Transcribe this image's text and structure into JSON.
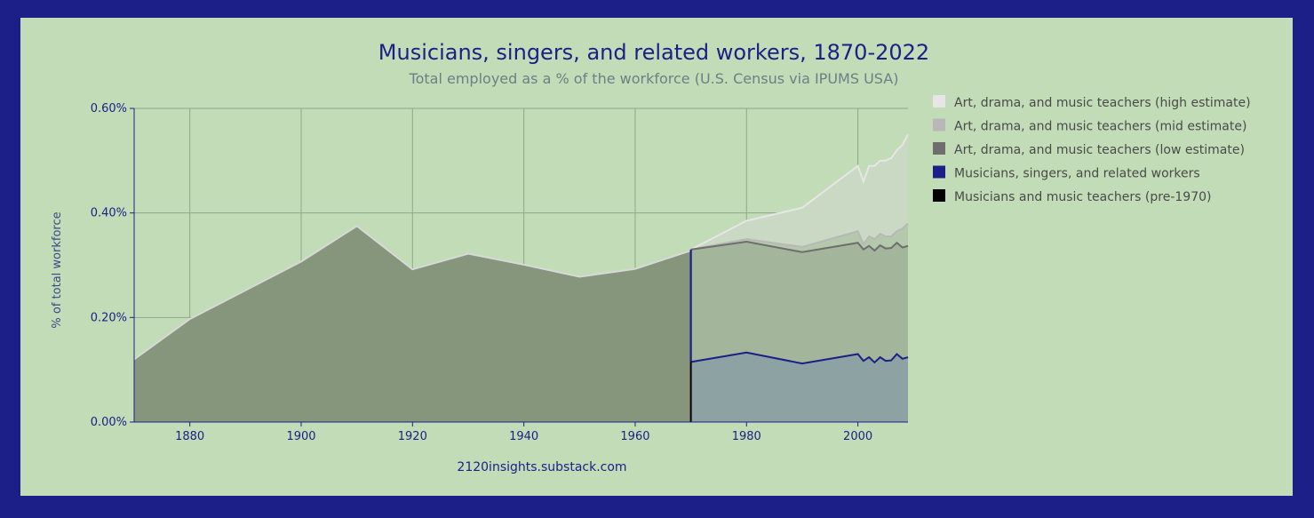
{
  "chart_data": {
    "type": "area",
    "title": "Musicians, singers, and related workers, 1870-2022",
    "subtitle": "Total employed as a % of the workforce (U.S. Census via IPUMS USA)",
    "ylabel": "% of total workforce",
    "xlabel": "",
    "credit": "2120insights.substack.com",
    "xlim": [
      1870,
      2009
    ],
    "ylim": [
      0,
      0.6
    ],
    "x_ticks": [
      1880,
      1900,
      1920,
      1940,
      1960,
      1980,
      2000
    ],
    "y_ticks": [
      0,
      0.2,
      0.4,
      0.6
    ],
    "y_tick_labels": [
      "0.00%",
      "0.20%",
      "0.40%",
      "0.60%"
    ],
    "grid": true,
    "legend_position": "right",
    "series": [
      {
        "name": "Art, drama, and music teachers (high estimate)",
        "color": "#e6e6e6",
        "x": [
          1970,
          1980,
          1990,
          2000,
          2001,
          2002,
          2003,
          2004,
          2005,
          2006,
          2007,
          2008,
          2009
        ],
        "values": [
          0.33,
          0.385,
          0.41,
          0.49,
          0.46,
          0.49,
          0.49,
          0.5,
          0.5,
          0.505,
          0.52,
          0.53,
          0.55
        ]
      },
      {
        "name": "Art, drama, and music teachers (mid estimate)",
        "color": "#b8b8b8",
        "x": [
          1970,
          1980,
          1990,
          2000,
          2001,
          2002,
          2003,
          2004,
          2005,
          2006,
          2007,
          2008,
          2009
        ],
        "values": [
          0.33,
          0.35,
          0.335,
          0.365,
          0.34,
          0.355,
          0.35,
          0.36,
          0.355,
          0.355,
          0.365,
          0.37,
          0.38
        ]
      },
      {
        "name": "Art, drama, and music teachers (low estimate)",
        "color": "#6e6e6e",
        "x": [
          1970,
          1980,
          1990,
          2000,
          2001,
          2002,
          2003,
          2004,
          2005,
          2006,
          2007,
          2008,
          2009
        ],
        "values": [
          0.33,
          0.345,
          0.325,
          0.343,
          0.33,
          0.337,
          0.328,
          0.338,
          0.332,
          0.333,
          0.343,
          0.334,
          0.337
        ]
      },
      {
        "name": "Musicians, singers, and related workers",
        "color": "#1b1f87",
        "x": [
          1970,
          1980,
          1990,
          2000,
          2001,
          2002,
          2003,
          2004,
          2005,
          2006,
          2007,
          2008,
          2009
        ],
        "values": [
          0.115,
          0.133,
          0.112,
          0.13,
          0.117,
          0.124,
          0.114,
          0.124,
          0.117,
          0.118,
          0.13,
          0.121,
          0.124
        ]
      },
      {
        "name": "Musicians and music teachers (pre-1970)",
        "color": "#000000",
        "x": [
          1870,
          1880,
          1890,
          1900,
          1910,
          1920,
          1930,
          1940,
          1950,
          1960,
          1970
        ],
        "values": [
          0.12,
          0.197,
          0.252,
          0.307,
          0.375,
          0.292,
          0.322,
          0.301,
          0.278,
          0.293,
          0.328
        ]
      }
    ]
  }
}
